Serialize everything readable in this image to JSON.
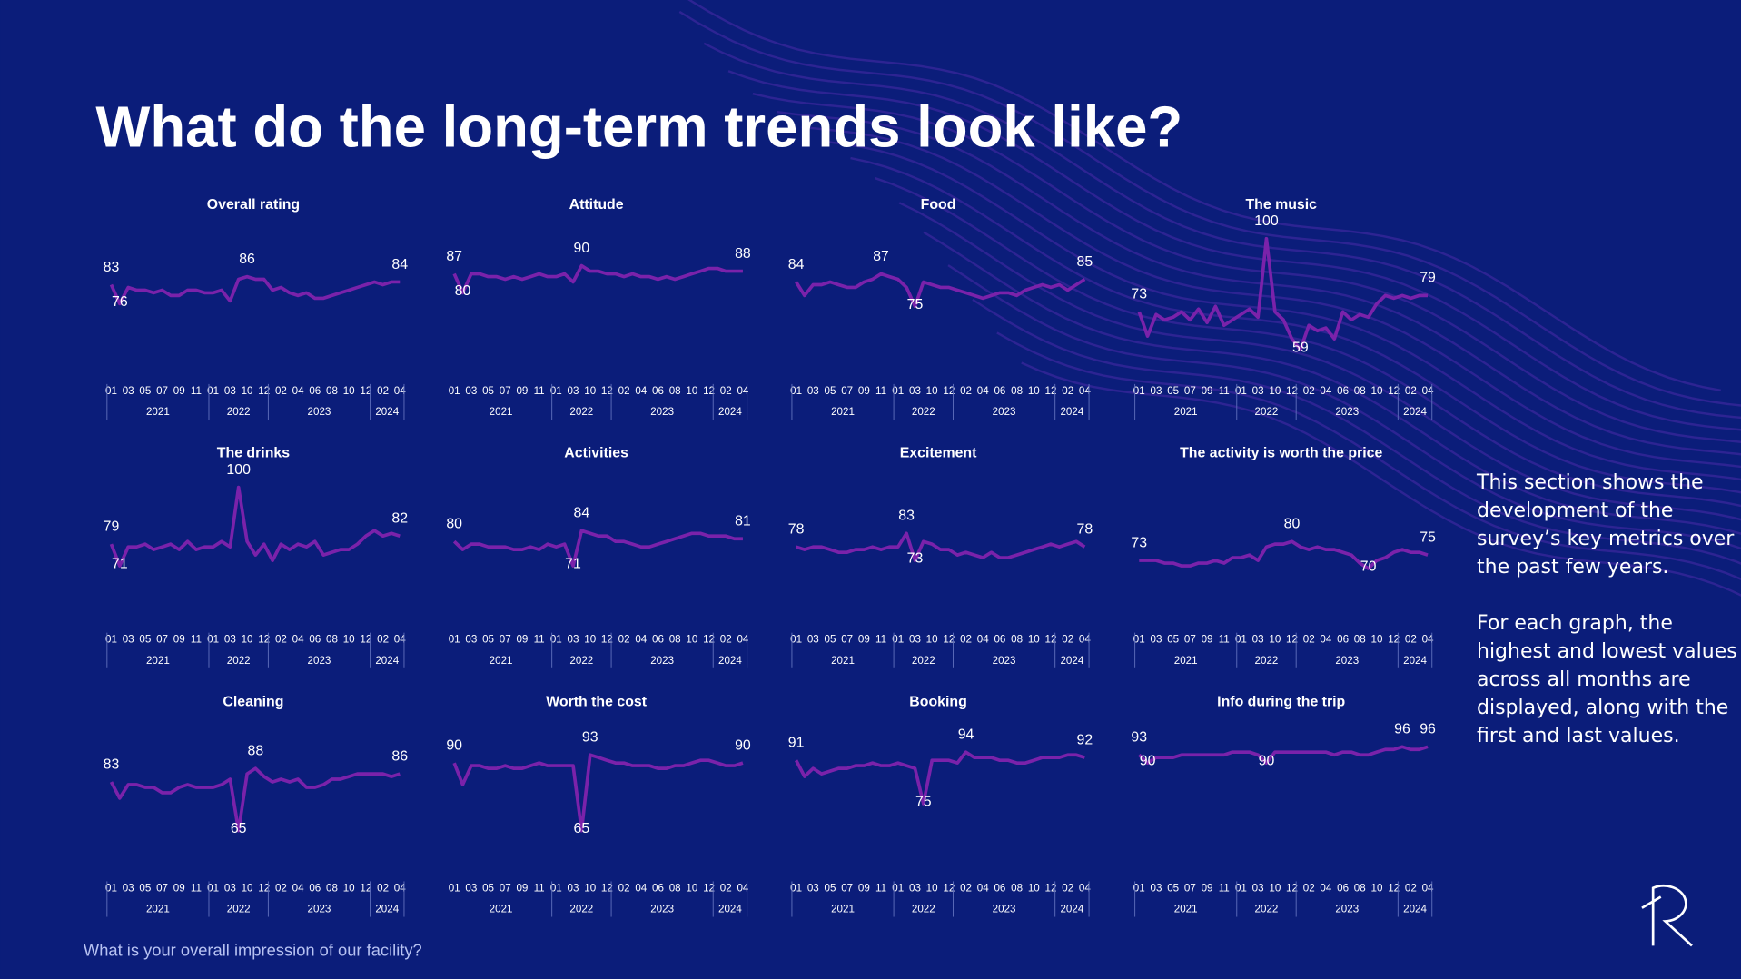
{
  "title": "What do the long-term trends look like?",
  "x_axis": {
    "groups": [
      {
        "year": "2021",
        "months": [
          "01",
          null,
          "03",
          null,
          "05",
          null,
          "07",
          null,
          "09",
          null,
          "11",
          null
        ]
      },
      {
        "year": "2022",
        "months": [
          "01",
          null,
          "03",
          null,
          "10",
          null,
          "12"
        ]
      },
      {
        "year": "2023",
        "months": [
          null,
          "02",
          null,
          "04",
          null,
          "06",
          null,
          "08",
          null,
          "10",
          null,
          "12"
        ]
      },
      {
        "year": "2024",
        "months": [
          null,
          "02",
          null,
          "04"
        ]
      }
    ]
  },
  "chart_data": [
    {
      "type": "line",
      "title": "Overall rating",
      "color": "#7a22aa",
      "ylim": [
        50,
        100
      ],
      "values": [
        83,
        76,
        82,
        81,
        81,
        80,
        81,
        79,
        79,
        81,
        81,
        80,
        80,
        81,
        77,
        85,
        86,
        85,
        85,
        81,
        82,
        80,
        79,
        80,
        78,
        78,
        79,
        80,
        81,
        82,
        83,
        84,
        83,
        84,
        84
      ]
    },
    {
      "type": "line",
      "title": "Attitude",
      "color": "#7a22aa",
      "ylim": [
        50,
        100
      ],
      "values": [
        87,
        80,
        87,
        87,
        86,
        86,
        85,
        86,
        85,
        86,
        87,
        86,
        86,
        87,
        84,
        90,
        88,
        88,
        87,
        87,
        86,
        87,
        86,
        86,
        85,
        86,
        85,
        86,
        87,
        88,
        89,
        89,
        88,
        88,
        88
      ]
    },
    {
      "type": "line",
      "title": "Food",
      "color": "#7a22aa",
      "ylim": [
        50,
        100
      ],
      "values": [
        84,
        79,
        83,
        83,
        84,
        83,
        82,
        82,
        84,
        85,
        87,
        86,
        85,
        82,
        75,
        84,
        83,
        82,
        82,
        81,
        80,
        79,
        78,
        79,
        80,
        80,
        79,
        81,
        82,
        83,
        82,
        83,
        81,
        83,
        85
      ]
    },
    {
      "type": "line",
      "title": "The music",
      "color": "#7a22aa",
      "ylim": [
        50,
        100
      ],
      "values": [
        73,
        64,
        72,
        70,
        71,
        73,
        70,
        74,
        69,
        75,
        68,
        70,
        72,
        74,
        71,
        100,
        73,
        70,
        63,
        59,
        68,
        66,
        67,
        63,
        73,
        70,
        72,
        71,
        76,
        79,
        78,
        79,
        78,
        79,
        79
      ]
    },
    {
      "type": "line",
      "title": "The drinks",
      "color": "#7a22aa",
      "ylim": [
        50,
        100
      ],
      "values": [
        79,
        71,
        78,
        78,
        79,
        77,
        78,
        79,
        77,
        80,
        77,
        78,
        78,
        80,
        78,
        100,
        80,
        75,
        79,
        73,
        79,
        77,
        79,
        78,
        80,
        75,
        76,
        77,
        77,
        79,
        82,
        84,
        82,
        83,
        82
      ]
    },
    {
      "type": "line",
      "title": "Activities",
      "color": "#7a22aa",
      "ylim": [
        50,
        100
      ],
      "values": [
        80,
        77,
        79,
        79,
        78,
        78,
        78,
        77,
        77,
        78,
        77,
        79,
        78,
        79,
        71,
        84,
        83,
        82,
        82,
        80,
        80,
        79,
        78,
        78,
        79,
        80,
        81,
        82,
        83,
        83,
        82,
        82,
        82,
        81,
        81
      ]
    },
    {
      "type": "line",
      "title": "Excitement",
      "color": "#7a22aa",
      "ylim": [
        50,
        100
      ],
      "values": [
        78,
        77,
        78,
        78,
        77,
        76,
        76,
        77,
        77,
        78,
        77,
        78,
        78,
        83,
        73,
        80,
        79,
        77,
        77,
        75,
        76,
        75,
        74,
        76,
        74,
        74,
        75,
        76,
        77,
        78,
        79,
        78,
        79,
        80,
        78
      ]
    },
    {
      "type": "line",
      "title": "The activity is worth the price",
      "color": "#7a22aa",
      "ylim": [
        50,
        100
      ],
      "values": [
        73,
        73,
        73,
        72,
        72,
        71,
        71,
        72,
        72,
        73,
        72,
        74,
        74,
        75,
        73,
        78,
        79,
        79,
        80,
        78,
        77,
        78,
        77,
        77,
        76,
        75,
        72,
        70,
        73,
        74,
        76,
        77,
        76,
        76,
        75
      ]
    },
    {
      "type": "line",
      "title": "Cleaning",
      "color": "#7a22aa",
      "ylim": [
        50,
        100
      ],
      "values": [
        83,
        77,
        82,
        82,
        81,
        81,
        79,
        79,
        81,
        82,
        81,
        81,
        81,
        82,
        84,
        65,
        86,
        88,
        85,
        83,
        84,
        83,
        84,
        81,
        81,
        82,
        84,
        84,
        85,
        86,
        86,
        86,
        86,
        85,
        86
      ]
    },
    {
      "type": "line",
      "title": "Worth the cost",
      "color": "#7a22aa",
      "ylim": [
        50,
        100
      ],
      "values": [
        90,
        82,
        89,
        89,
        88,
        88,
        89,
        88,
        88,
        89,
        90,
        89,
        89,
        89,
        89,
        65,
        93,
        92,
        91,
        90,
        90,
        89,
        89,
        89,
        88,
        88,
        89,
        89,
        90,
        91,
        91,
        90,
        89,
        89,
        90
      ]
    },
    {
      "type": "line",
      "title": "Booking",
      "color": "#7a22aa",
      "ylim": [
        50,
        100
      ],
      "values": [
        91,
        85,
        88,
        86,
        87,
        88,
        88,
        89,
        89,
        90,
        89,
        89,
        90,
        89,
        88,
        75,
        91,
        91,
        91,
        90,
        94,
        92,
        92,
        92,
        91,
        91,
        90,
        90,
        91,
        92,
        92,
        92,
        93,
        93,
        92
      ]
    },
    {
      "type": "line",
      "title": "Info during the trip",
      "color": "#7a22aa",
      "ylim": [
        50,
        100
      ],
      "values": [
        93,
        90,
        92,
        92,
        92,
        93,
        93,
        93,
        93,
        93,
        93,
        94,
        94,
        94,
        93,
        90,
        94,
        94,
        94,
        94,
        94,
        94,
        94,
        93,
        94,
        94,
        93,
        93,
        94,
        95,
        95,
        96,
        95,
        95,
        96
      ]
    }
  ],
  "side_text": [
    "This section shows the development of the survey’s key metrics over the past few years.",
    "For each graph, the highest and lowest values across all months are displayed, along with the first and last values."
  ],
  "footer": "What is your overall impression of our facility?"
}
